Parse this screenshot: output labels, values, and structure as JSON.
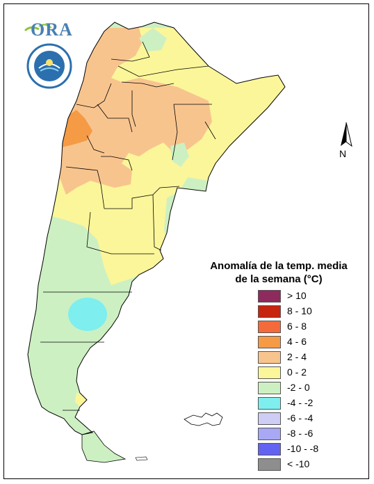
{
  "legend": {
    "title_line1": "Anomalía de la temp. media",
    "title_line2": "de la semana (°C)",
    "items": [
      {
        "label": "> 10",
        "color": "#8e2a5e"
      },
      {
        "label": "8 - 10",
        "color": "#c8250e"
      },
      {
        "label": "6 - 8",
        "color": "#f56a3a"
      },
      {
        "label": "4 - 6",
        "color": "#f59a45"
      },
      {
        "label": "2 - 4",
        "color": "#f8c48e"
      },
      {
        "label": "0 - 2",
        "color": "#fbf69a"
      },
      {
        "label": "-2 - 0",
        "color": "#cdf0c2"
      },
      {
        "label": "-4 - -2",
        "color": "#7eeeee"
      },
      {
        "label": "-6 - -4",
        "color": "#cdcdf6"
      },
      {
        "label": "-8 - -6",
        "color": "#a8a8f5"
      },
      {
        "label": "-10 - -8",
        "color": "#6363f2"
      },
      {
        "label": "< -10",
        "color": "#8e8e8e"
      }
    ]
  },
  "north_label": "N",
  "logo_text": "ORA",
  "map_colors": {
    "warm_2_4": "#f8c48e",
    "warm_4_6": "#f59a45",
    "mild_0_2": "#fbf69a",
    "cool_m2_0": "#cdf0c2",
    "cold_m4_m2": "#7eeeee"
  },
  "icons": {
    "logo": "ora-logo-icon",
    "seal": "smn-seal-icon",
    "north": "north-arrow-icon"
  }
}
